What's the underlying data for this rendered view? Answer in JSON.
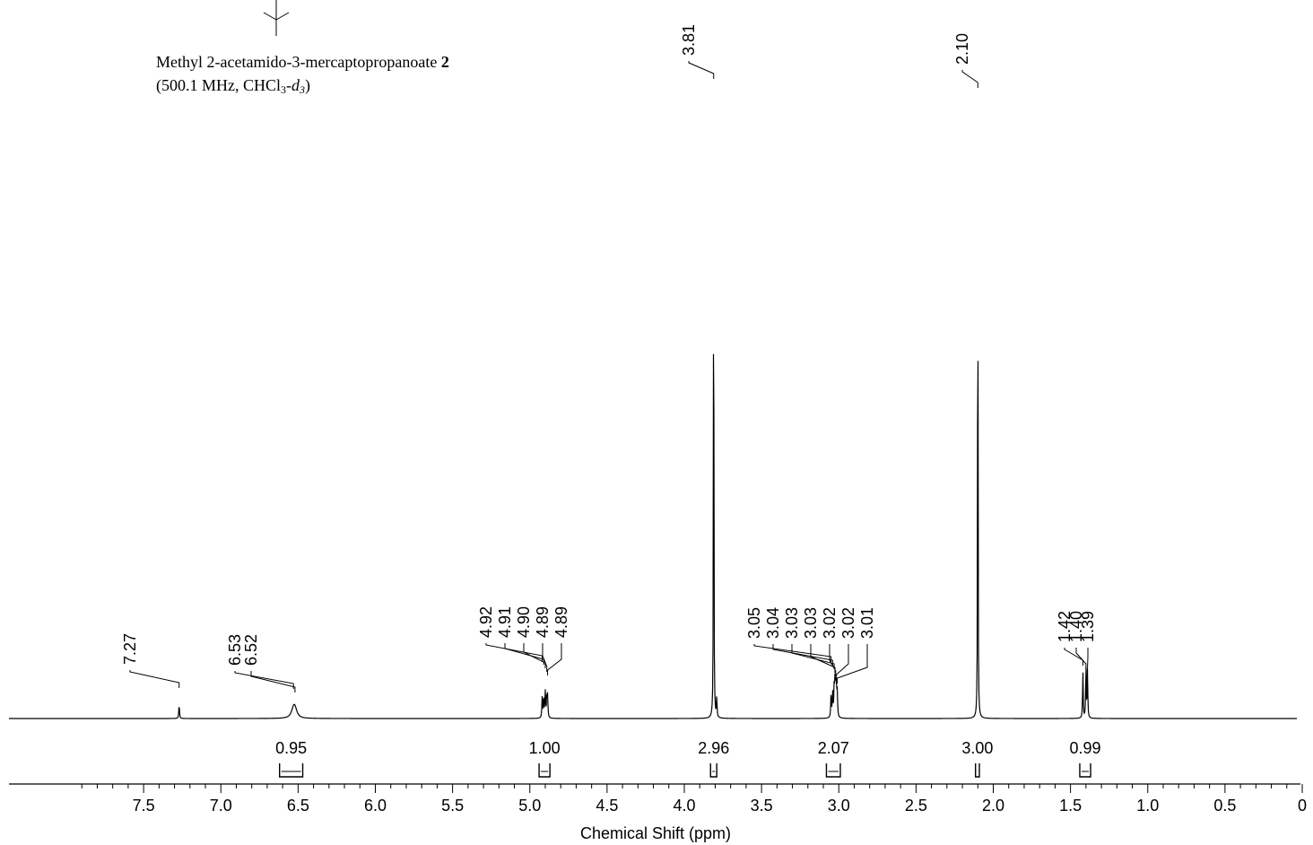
{
  "caption": {
    "compound_name": "Methyl 2-acetamido-3-mercaptopropanoate",
    "compound_number": "2",
    "conditions_open": "(500.1 MHz, CHCl",
    "subscript": "3",
    "dash": "-",
    "italic": "d",
    "italic_sub": "3",
    "conditions_close": ")"
  },
  "chart_data": {
    "type": "line",
    "title": "",
    "xlabel": "Chemical Shift (ppm)",
    "ylabel": "",
    "xlim": [
      8.0,
      0.0
    ],
    "x_reversed": true,
    "x_ticks": [
      "7.5",
      "7.0",
      "6.5",
      "6.0",
      "5.5",
      "5.0",
      "4.5",
      "4.0",
      "3.5",
      "3.0",
      "2.5",
      "2.0",
      "1.5",
      "1.0",
      "0.5",
      "0"
    ],
    "grid": false,
    "line_color": "#000000",
    "peaks": [
      {
        "shift": 7.27,
        "intensity": 0.022,
        "width": 0.0025
      },
      {
        "shift": 6.53,
        "intensity": 0.012,
        "width": 0.016
      },
      {
        "shift": 6.52,
        "intensity": 0.012,
        "width": 0.016
      },
      {
        "shift": 4.92,
        "intensity": 0.032,
        "width": 0.0025
      },
      {
        "shift": 4.91,
        "intensity": 0.034,
        "width": 0.0025
      },
      {
        "shift": 4.9,
        "intensity": 0.04,
        "width": 0.0025
      },
      {
        "shift": 4.89,
        "intensity": 0.034,
        "width": 0.0025
      },
      {
        "shift": 4.885,
        "intensity": 0.032,
        "width": 0.0025
      },
      {
        "shift": 3.81,
        "intensity": 1.0,
        "width": 0.0015
      },
      {
        "shift": 3.79,
        "intensity": 0.035,
        "width": 0.002
      },
      {
        "shift": 3.05,
        "intensity": 0.036,
        "width": 0.0025
      },
      {
        "shift": 3.04,
        "intensity": 0.04,
        "width": 0.0025
      },
      {
        "shift": 3.03,
        "intensity": 0.044,
        "width": 0.0025
      },
      {
        "shift": 3.025,
        "intensity": 0.048,
        "width": 0.0025
      },
      {
        "shift": 3.02,
        "intensity": 0.044,
        "width": 0.0025
      },
      {
        "shift": 3.015,
        "intensity": 0.04,
        "width": 0.0025
      },
      {
        "shift": 3.01,
        "intensity": 0.036,
        "width": 0.0025
      },
      {
        "shift": 2.1,
        "intensity": 0.972,
        "width": 0.0015
      },
      {
        "shift": 1.42,
        "intensity": 0.074,
        "width": 0.0022
      },
      {
        "shift": 1.4,
        "intensity": 0.085,
        "width": 0.0022
      },
      {
        "shift": 1.39,
        "intensity": 0.074,
        "width": 0.0022
      }
    ],
    "peak_labels": [
      {
        "text": "7.27",
        "shift": 7.27
      },
      {
        "text": "6.53",
        "shift": 6.53
      },
      {
        "text": "6.52",
        "shift": 6.52
      },
      {
        "text": "4.92",
        "shift": 4.92
      },
      {
        "text": "4.91",
        "shift": 4.91
      },
      {
        "text": "4.90",
        "shift": 4.9
      },
      {
        "text": "4.89",
        "shift": 4.89
      },
      {
        "text": "4.89",
        "shift": 4.885
      },
      {
        "text": "3.81",
        "shift": 3.81
      },
      {
        "text": "3.05",
        "shift": 3.05
      },
      {
        "text": "3.04",
        "shift": 3.04
      },
      {
        "text": "3.03",
        "shift": 3.03
      },
      {
        "text": "3.03",
        "shift": 3.025
      },
      {
        "text": "3.02",
        "shift": 3.02
      },
      {
        "text": "3.02",
        "shift": 3.015
      },
      {
        "text": "3.01",
        "shift": 3.01
      },
      {
        "text": "2.10",
        "shift": 2.1
      },
      {
        "text": "1.42",
        "shift": 1.42
      },
      {
        "text": "1.40",
        "shift": 1.4
      },
      {
        "text": "1.39",
        "shift": 1.39
      }
    ],
    "integrals": [
      {
        "value": "0.95",
        "from": 6.62,
        "to": 6.47
      },
      {
        "value": "1.00",
        "from": 4.94,
        "to": 4.87
      },
      {
        "value": "2.96",
        "from": 3.83,
        "to": 3.79
      },
      {
        "value": "2.07",
        "from": 3.08,
        "to": 2.99
      },
      {
        "value": "3.00",
        "from": 2.115,
        "to": 2.09
      },
      {
        "value": "0.99",
        "from": 1.44,
        "to": 1.37
      }
    ]
  }
}
